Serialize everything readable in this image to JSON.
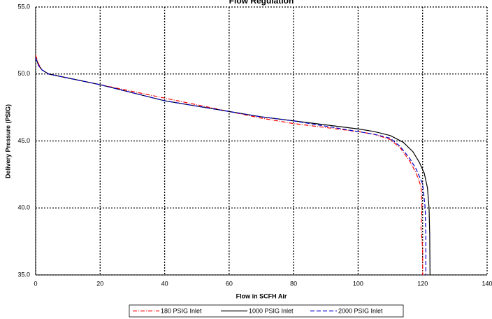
{
  "chart_data": {
    "type": "line",
    "title": "Flow Regulation",
    "x_label": "Flow in SCFH Air",
    "y_label": "Delivery Pressure (PSIG)",
    "xlim": [
      0,
      140
    ],
    "xticks": [
      0,
      20,
      40,
      60,
      80,
      100,
      120,
      140
    ],
    "ylim": [
      35,
      55
    ],
    "yticks": [
      {
        "value": 35,
        "label": "35.0"
      },
      {
        "value": 40,
        "label": "40.0"
      },
      {
        "value": 45,
        "label": "45.0"
      },
      {
        "value": 50,
        "label": "50.0"
      },
      {
        "value": 55,
        "label": "55.0"
      }
    ],
    "grid": true,
    "legend": "bottom",
    "series": [
      {
        "name": "180 PSIG Inlet",
        "color": "#ff0000",
        "dash": "6 2 1 2",
        "x": [
          0,
          1,
          2,
          4,
          10,
          20,
          30,
          40,
          50,
          60,
          70,
          80,
          90,
          100,
          105,
          110,
          113,
          116,
          118,
          119.5,
          119.8,
          119.5,
          120,
          120
        ],
        "values": [
          51.4,
          50.7,
          50.3,
          50.0,
          49.7,
          49.2,
          48.7,
          48.2,
          47.7,
          47.2,
          46.7,
          46.3,
          46.0,
          45.7,
          45.5,
          45.1,
          44.5,
          43.5,
          42.6,
          41.6,
          40,
          38.5,
          37,
          35
        ]
      },
      {
        "name": "1000 PSIG Inlet",
        "color": "#000000",
        "dash": "none",
        "x": [
          0,
          1,
          2,
          4,
          10,
          20,
          30,
          40,
          50,
          60,
          70,
          80,
          90,
          100,
          105,
          110,
          114,
          117,
          119,
          120.5,
          121.5,
          122,
          122.2,
          122.3
        ],
        "values": [
          51.2,
          50.6,
          50.3,
          50.0,
          49.7,
          49.2,
          48.6,
          48.0,
          47.6,
          47.2,
          46.8,
          46.5,
          46.2,
          45.9,
          45.7,
          45.4,
          44.9,
          44.2,
          43.4,
          42.6,
          41.5,
          40,
          38,
          35
        ]
      },
      {
        "name": "2000 PSIG Inlet",
        "color": "#0000cc",
        "dash": "6 3",
        "x": [
          0,
          1,
          2,
          4,
          10,
          20,
          30,
          40,
          50,
          60,
          70,
          80,
          90,
          100,
          105,
          110,
          113,
          116,
          118,
          120,
          120.8,
          121,
          121
        ],
        "values": [
          51.2,
          50.6,
          50.3,
          50.0,
          49.7,
          49.2,
          48.6,
          48.0,
          47.6,
          47.2,
          46.8,
          46.5,
          46.1,
          45.7,
          45.5,
          45.2,
          44.6,
          43.7,
          42.9,
          41.8,
          40,
          38,
          35
        ]
      }
    ]
  }
}
